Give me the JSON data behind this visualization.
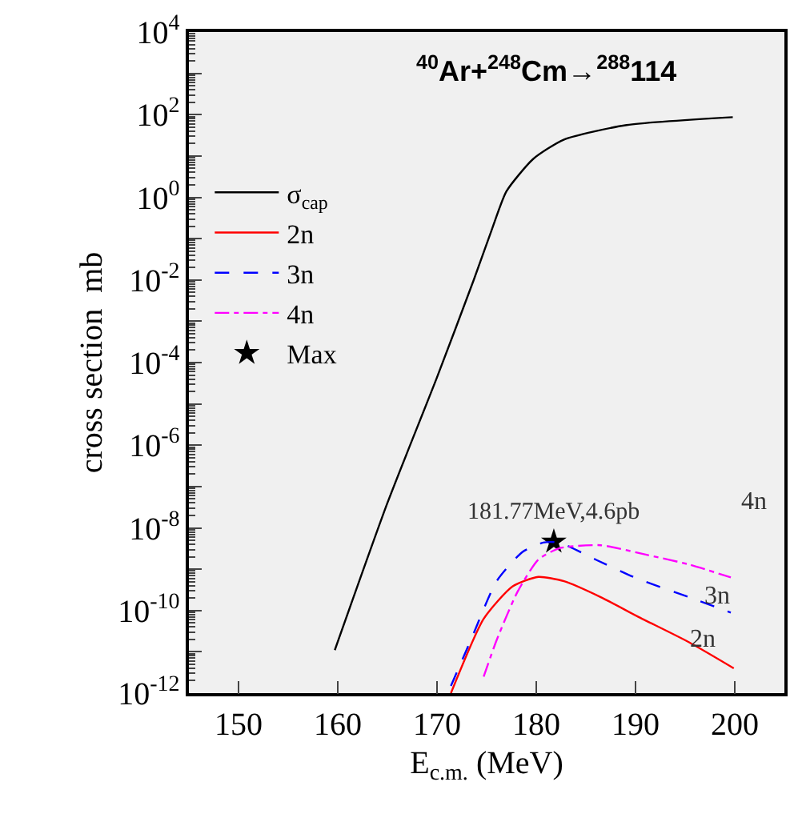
{
  "chart_data": {
    "type": "line",
    "title": "$^{40}$Ar+$^{248}$Cm→$^{288}$114",
    "xlabel": "E$_{c.m.}$ (MeV)",
    "ylabel": "cross section  mb",
    "log": "y",
    "grid": false,
    "legend": "top left",
    "xlim": [
      145,
      205
    ],
    "xticks": [
      150,
      160,
      170,
      180,
      190,
      200
    ],
    "ylim": [
      1e-12,
      10000
    ],
    "yticks": [
      {
        "value": 1e-12,
        "label": "10$^{-12}$"
      },
      {
        "value": 1e-11,
        "label": null
      },
      {
        "value": 1e-10,
        "label": "10$^{-10}$"
      },
      {
        "value": 1e-09,
        "label": null
      },
      {
        "value": 1e-08,
        "label": "10$^{-8}$"
      },
      {
        "value": 1e-07,
        "label": null
      },
      {
        "value": 1e-06,
        "label": "10$^{-6}$"
      },
      {
        "value": 1e-05,
        "label": null
      },
      {
        "value": 0.0001,
        "label": "10$^{-4}$"
      },
      {
        "value": 0.001,
        "label": null
      },
      {
        "value": 0.01,
        "label": "10$^{-2}$"
      },
      {
        "value": 0.1,
        "label": null
      },
      {
        "value": 1,
        "label": "10$^{0}$"
      },
      {
        "value": 10,
        "label": null
      },
      {
        "value": 100,
        "label": "10$^{2}$"
      },
      {
        "value": 1000,
        "label": null
      },
      {
        "value": 10000,
        "label": "10$^{4}$"
      }
    ],
    "series": [
      {
        "name": "σ$_{cap}$",
        "color": "#000000",
        "line_style": "solid",
        "x": [
          159.7,
          165,
          170,
          173.7,
          175.5,
          177,
          179.7,
          182.8,
          189.1,
          199.8
        ],
        "values": [
          1.1e-11,
          4e-08,
          4.4e-05,
          0.01,
          0.16,
          1.4,
          8.5,
          25,
          56,
          87
        ]
      },
      {
        "name": "2n",
        "color": "#ff0000",
        "line_style": "solid",
        "x": [
          171.4,
          174.7,
          177.6,
          180.2,
          182.8,
          186.5,
          190.2,
          195.4,
          199.9
        ],
        "values": [
          1e-12,
          6.3e-11,
          3.8e-10,
          6.5e-10,
          5.1e-10,
          2.1e-10,
          7.2e-11,
          1.7e-11,
          4e-12
        ]
      },
      {
        "name": "3n",
        "color": "#0000ff",
        "line_style": "dashed",
        "x": [
          171.4,
          173.4,
          176.0,
          178.6,
          180.7,
          182.3,
          186.0,
          190.2,
          195.4,
          199.6
        ],
        "values": [
          1.5e-12,
          1.9e-11,
          5.1e-10,
          2.6e-09,
          4.4e-09,
          4.4e-09,
          1.7e-09,
          5.9e-10,
          2.1e-10,
          8.9e-11
        ]
      },
      {
        "name": "4n",
        "color": "#ff00ff",
        "line_style": "dashdot",
        "x": [
          174.7,
          176.0,
          178.1,
          180.2,
          182.3,
          186.5,
          191.2,
          195.4,
          199.6
        ],
        "values": [
          2.5e-12,
          1.9e-11,
          2.8e-10,
          1.7e-09,
          3.2e-09,
          3.8e-09,
          2.2e-09,
          1.3e-09,
          6.3e-10
        ]
      },
      {
        "name": "Max",
        "type": "scatter",
        "marker": "star",
        "color": "#000000",
        "x": [
          181.77
        ],
        "values": [
          4.6e-09
        ]
      }
    ],
    "annotations": [
      {
        "text": "181.77MeV,4.6pb",
        "x": 181.77,
        "y": 4.6e-09
      },
      "4n",
      "3n",
      "2n"
    ]
  }
}
